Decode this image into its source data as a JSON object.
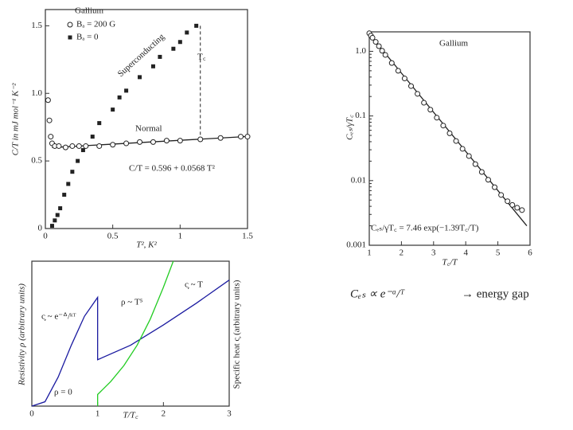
{
  "chart_data": [
    {
      "type": "scatter",
      "legend_title": "Gallium",
      "legend": "upper left",
      "ylabel": "C/T in mJ mol⁻¹ K⁻²",
      "xlabel": "T², K²",
      "xlim": [
        0,
        1.5
      ],
      "ylim": [
        0,
        1.62
      ],
      "xticks": [
        0,
        0.5,
        1,
        1.5
      ],
      "yticks": [
        0,
        0.5,
        {
          "value": 1,
          "label": "1.0"
        },
        1.5
      ],
      "series": [
        {
          "name": "Bₐ = 200 G",
          "marker": "circle",
          "color": "#222",
          "x": [
            0.02,
            0.03,
            0.04,
            0.05,
            0.07,
            0.1,
            0.15,
            0.2,
            0.25,
            0.3,
            0.4,
            0.5,
            0.6,
            0.7,
            0.8,
            0.9,
            1.0,
            1.15,
            1.3,
            1.45,
            1.5
          ],
          "values": [
            0.95,
            0.8,
            0.68,
            0.63,
            0.61,
            0.61,
            0.6,
            0.61,
            0.61,
            0.61,
            0.61,
            0.62,
            0.63,
            0.64,
            0.64,
            0.65,
            0.65,
            0.66,
            0.67,
            0.68,
            0.68
          ]
        },
        {
          "name": "Bₐ = 0",
          "marker": "square",
          "color": "#222",
          "x": [
            0.05,
            0.07,
            0.09,
            0.11,
            0.14,
            0.17,
            0.2,
            0.24,
            0.28,
            0.35,
            0.4,
            0.5,
            0.55,
            0.6,
            0.7,
            0.8,
            0.85,
            0.95,
            1.0,
            1.05,
            1.12
          ],
          "values": [
            0.02,
            0.06,
            0.1,
            0.15,
            0.25,
            0.33,
            0.42,
            0.5,
            0.58,
            0.68,
            0.78,
            0.88,
            0.97,
            1.02,
            1.12,
            1.2,
            1.27,
            1.33,
            1.38,
            1.45,
            1.5
          ]
        }
      ],
      "fit_line": {
        "x": [
          0.05,
          1.5
        ],
        "values": [
          0.599,
          0.681
        ]
      },
      "tc_line": {
        "x": [
          1.15,
          1.15
        ],
        "values": [
          1.5,
          0.68
        ]
      },
      "annotations": [
        "Superconducting",
        "Normal",
        "C/T = 0.596 + 0.0568 T²",
        "T꜀"
      ]
    },
    {
      "type": "scatter",
      "yscale": "log",
      "legend_title": "Gallium",
      "ylabel": "Cₑₛ/γT꜀",
      "xlabel": "T꜀/T",
      "xlim": [
        1,
        6
      ],
      "ylim": [
        0.001,
        2
      ],
      "xticks": [
        1,
        2,
        3,
        4,
        5,
        6
      ],
      "yticks": [
        0.001,
        0.01,
        0.1,
        {
          "value": 1,
          "label": "1.0"
        }
      ],
      "series": [
        {
          "marker": "circle",
          "color": "#222",
          "x": [
            1.0,
            1.05,
            1.1,
            1.2,
            1.3,
            1.4,
            1.5,
            1.7,
            1.9,
            2.1,
            2.3,
            2.5,
            2.7,
            2.9,
            3.1,
            3.3,
            3.5,
            3.7,
            3.9,
            4.1,
            4.3,
            4.5,
            4.7,
            4.9,
            5.1,
            5.3,
            5.45,
            5.6,
            5.75
          ],
          "values": [
            1.9,
            1.75,
            1.62,
            1.4,
            1.2,
            1.02,
            0.88,
            0.66,
            0.5,
            0.38,
            0.29,
            0.22,
            0.16,
            0.125,
            0.094,
            0.071,
            0.054,
            0.041,
            0.031,
            0.024,
            0.018,
            0.0136,
            0.0103,
            0.0079,
            0.006,
            0.0048,
            0.0042,
            0.0038,
            0.0035
          ]
        }
      ],
      "fit_line": {
        "x": [
          1,
          5.9
        ],
        "values": [
          1.86,
          0.002
        ]
      },
      "annotations": [
        "Cₑₛ/γT꜀ = 7.46 exp(−1.39T꜀/T)"
      ]
    },
    {
      "type": "line",
      "xlabel": "T/T꜀",
      "ylabel": "Resistivity ρ (arbitrary units)",
      "y2label": "Specific heat c᷊ (arbitrary units)",
      "xlim": [
        0,
        3
      ],
      "ylim": [
        0,
        1
      ],
      "xticks": [
        0,
        1,
        2,
        3
      ],
      "series": [
        {
          "color": "#1a1aa0",
          "x": [
            0,
            0.2,
            0.4,
            0.6,
            0.8,
            1.0,
            1.0,
            1.5,
            2.0,
            2.5,
            3.0
          ],
          "values": [
            0,
            0.03,
            0.2,
            0.42,
            0.62,
            0.75,
            0.32,
            0.42,
            0.56,
            0.71,
            0.87
          ]
        },
        {
          "color": "#22cc22",
          "x": [
            1,
            1,
            1.2,
            1.4,
            1.6,
            1.8,
            2.0,
            2.15
          ],
          "values": [
            0,
            0.08,
            0.17,
            0.28,
            0.42,
            0.6,
            0.82,
            1.0
          ]
        }
      ],
      "annotations": [
        "c᷊ ~ e⁻ᐞ/ᵏᵀ",
        "ρ ~ T⁵",
        "c᷊ ~ T",
        "ρ = 0"
      ]
    }
  ],
  "slide_text": [
    "Cₑₛ ∝ e⁻ᵃ/ᵀ",
    "→ energy gap"
  ]
}
